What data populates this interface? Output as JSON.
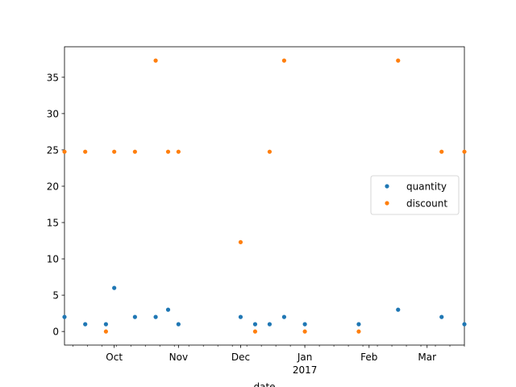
{
  "chart_data": {
    "type": "scatter",
    "xlabel": "date",
    "ylabel": "",
    "x_axis_type": "date",
    "xlim": [
      "2016-09-07",
      "2017-03-19"
    ],
    "ylim": [
      -1.87,
      39.2
    ],
    "y_ticks": [
      0,
      5,
      10,
      15,
      20,
      25,
      30,
      35
    ],
    "y_tick_labels": [
      "0",
      "5",
      "10",
      "15",
      "20",
      "25",
      "30",
      "35"
    ],
    "x_major_ticks": [
      {
        "date": "2016-10-01",
        "label": "Oct",
        "sublabel": ""
      },
      {
        "date": "2016-11-01",
        "label": "Nov",
        "sublabel": ""
      },
      {
        "date": "2016-12-01",
        "label": "Dec",
        "sublabel": ""
      },
      {
        "date": "2017-01-01",
        "label": "Jan",
        "sublabel": "2017"
      },
      {
        "date": "2017-02-01",
        "label": "Feb",
        "sublabel": ""
      },
      {
        "date": "2017-03-01",
        "label": "Mar",
        "sublabel": ""
      }
    ],
    "x_minor_ticks": [
      "2016-09-11",
      "2016-09-18",
      "2016-09-25",
      "2016-10-02",
      "2016-10-09",
      "2016-10-16",
      "2016-10-23",
      "2016-10-30",
      "2016-11-06",
      "2016-11-13",
      "2016-11-20",
      "2016-11-27",
      "2016-12-04",
      "2016-12-11",
      "2016-12-18",
      "2016-12-25",
      "2017-01-01",
      "2017-01-08",
      "2017-01-15",
      "2017-01-22",
      "2017-01-29",
      "2017-02-05",
      "2017-02-12",
      "2017-02-19",
      "2017-02-26",
      "2017-03-05",
      "2017-03-12",
      "2017-03-19"
    ],
    "grid": false,
    "legend_position": "center-right",
    "series": [
      {
        "name": "quantity",
        "color": "#1f77b4",
        "points": [
          {
            "x": "2016-09-07",
            "y": 2
          },
          {
            "x": "2016-09-17",
            "y": 1
          },
          {
            "x": "2016-09-27",
            "y": 1
          },
          {
            "x": "2016-10-01",
            "y": 6
          },
          {
            "x": "2016-10-11",
            "y": 2
          },
          {
            "x": "2016-10-21",
            "y": 2
          },
          {
            "x": "2016-10-27",
            "y": 3
          },
          {
            "x": "2016-11-01",
            "y": 1
          },
          {
            "x": "2016-12-01",
            "y": 2
          },
          {
            "x": "2016-12-08",
            "y": 1
          },
          {
            "x": "2016-12-15",
            "y": 1
          },
          {
            "x": "2016-12-22",
            "y": 2
          },
          {
            "x": "2017-01-01",
            "y": 1
          },
          {
            "x": "2017-01-27",
            "y": 1
          },
          {
            "x": "2017-02-15",
            "y": 3
          },
          {
            "x": "2017-03-08",
            "y": 2
          },
          {
            "x": "2017-03-19",
            "y": 1
          }
        ]
      },
      {
        "name": "discount",
        "color": "#ff7f0e",
        "points": [
          {
            "x": "2016-09-07",
            "y": 24.75
          },
          {
            "x": "2016-09-17",
            "y": 24.75
          },
          {
            "x": "2016-09-27",
            "y": 0
          },
          {
            "x": "2016-10-01",
            "y": 24.75
          },
          {
            "x": "2016-10-11",
            "y": 24.75
          },
          {
            "x": "2016-10-21",
            "y": 37.3
          },
          {
            "x": "2016-10-27",
            "y": 24.75
          },
          {
            "x": "2016-11-01",
            "y": 24.75
          },
          {
            "x": "2016-12-01",
            "y": 12.3
          },
          {
            "x": "2016-12-08",
            "y": 0
          },
          {
            "x": "2016-12-15",
            "y": 24.75
          },
          {
            "x": "2016-12-22",
            "y": 37.3
          },
          {
            "x": "2017-01-01",
            "y": 0
          },
          {
            "x": "2017-01-27",
            "y": 0
          },
          {
            "x": "2017-02-15",
            "y": 37.3
          },
          {
            "x": "2017-03-08",
            "y": 24.75
          },
          {
            "x": "2017-03-19",
            "y": 24.75
          }
        ]
      }
    ]
  }
}
